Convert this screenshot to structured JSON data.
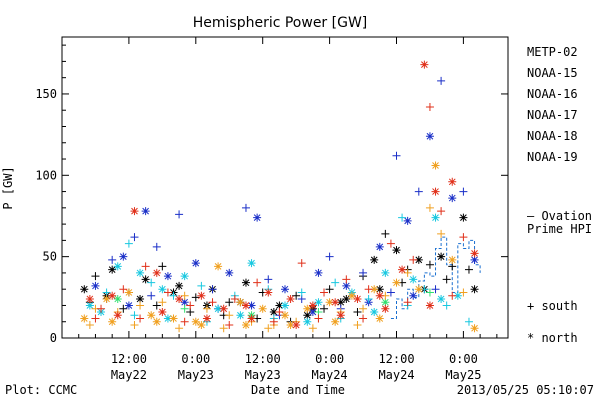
{
  "chart_data": {
    "type": "scatter",
    "title": "Hemispheric Power [GW]",
    "xlabel": "Date and Time",
    "ylabel": "P [GW]",
    "ylim": [
      0,
      185
    ],
    "xlim": [
      0,
      80
    ],
    "x_unit": "hours since May21 00:00 (tick labels shown as clock/date)",
    "y_ticks": [
      0,
      50,
      100,
      150
    ],
    "x_ticks": [
      {
        "x": 12,
        "time": "12:00",
        "date": "May22"
      },
      {
        "x": 24,
        "time": "0:00",
        "date": "May23"
      },
      {
        "x": 36,
        "time": "12:00",
        "date": "May23"
      },
      {
        "x": 48,
        "time": "0:00",
        "date": "May24"
      },
      {
        "x": 60,
        "time": "12:00",
        "date": "May24"
      },
      {
        "x": 72,
        "time": "0:00",
        "date": "May25"
      }
    ],
    "legend": [
      {
        "name": "METP-02",
        "color": "#000000"
      },
      {
        "name": "NOAA-15",
        "color": "#1a2fc8"
      },
      {
        "name": "NOAA-16",
        "color": "#18c8e0"
      },
      {
        "name": "NOAA-17",
        "color": "#30e070"
      },
      {
        "name": "NOAA-18",
        "color": "#f0a020"
      },
      {
        "name": "NOAA-19",
        "color": "#e0301a"
      }
    ],
    "ovation": {
      "label_line1": "— Ovation",
      "label_line2": "Prime HPI",
      "color": "#1a6fd0",
      "points": [
        [
          59,
          12
        ],
        [
          60,
          24
        ],
        [
          61,
          18
        ],
        [
          62,
          30
        ],
        [
          63,
          25
        ],
        [
          64,
          35
        ],
        [
          65,
          40
        ],
        [
          66,
          38
        ],
        [
          67,
          55
        ],
        [
          68,
          62
        ],
        [
          69,
          45
        ],
        [
          70,
          28
        ],
        [
          71,
          58
        ],
        [
          72,
          55
        ],
        [
          73,
          60
        ],
        [
          74,
          45
        ],
        [
          75,
          40
        ]
      ]
    },
    "marker_key": {
      "south": "+ south",
      "north": "* north"
    },
    "series": [
      {
        "name": "METP-02",
        "color": "#000000",
        "points": [
          [
            4,
            30
          ],
          [
            6,
            38
          ],
          [
            9,
            42
          ],
          [
            12,
            28
          ],
          [
            15,
            36
          ],
          [
            18,
            44
          ],
          [
            21,
            32
          ],
          [
            24,
            25
          ],
          [
            27,
            30
          ],
          [
            30,
            22
          ],
          [
            33,
            34
          ],
          [
            36,
            28
          ],
          [
            39,
            20
          ],
          [
            42,
            26
          ],
          [
            45,
            18
          ],
          [
            48,
            30
          ],
          [
            51,
            24
          ],
          [
            54,
            38
          ],
          [
            56,
            48
          ],
          [
            58,
            64
          ],
          [
            60,
            54
          ],
          [
            62,
            42
          ],
          [
            64,
            48
          ],
          [
            66,
            45
          ],
          [
            68,
            50
          ],
          [
            70,
            44
          ],
          [
            72,
            74
          ],
          [
            73,
            42
          ],
          [
            74,
            30
          ],
          [
            5,
            22
          ],
          [
            8,
            26
          ],
          [
            11,
            18
          ],
          [
            14,
            24
          ],
          [
            17,
            20
          ],
          [
            20,
            28
          ],
          [
            23,
            16
          ],
          [
            26,
            20
          ],
          [
            29,
            14
          ],
          [
            32,
            22
          ],
          [
            35,
            12
          ],
          [
            38,
            16
          ],
          [
            41,
            10
          ],
          [
            44,
            14
          ],
          [
            47,
            18
          ],
          [
            50,
            22
          ],
          [
            53,
            16
          ],
          [
            57,
            30
          ],
          [
            61,
            34
          ],
          [
            65,
            30
          ],
          [
            69,
            36
          ]
        ]
      },
      {
        "name": "NOAA-15",
        "color": "#1a2fc8",
        "points": [
          [
            6,
            32
          ],
          [
            9,
            48
          ],
          [
            11,
            50
          ],
          [
            13,
            62
          ],
          [
            15,
            78
          ],
          [
            17,
            56
          ],
          [
            19,
            38
          ],
          [
            21,
            76
          ],
          [
            24,
            46
          ],
          [
            27,
            30
          ],
          [
            30,
            40
          ],
          [
            33,
            80
          ],
          [
            35,
            74
          ],
          [
            37,
            36
          ],
          [
            40,
            30
          ],
          [
            43,
            24
          ],
          [
            46,
            40
          ],
          [
            48,
            50
          ],
          [
            51,
            32
          ],
          [
            54,
            40
          ],
          [
            57,
            56
          ],
          [
            60,
            112
          ],
          [
            62,
            72
          ],
          [
            64,
            90
          ],
          [
            66,
            124
          ],
          [
            68,
            158
          ],
          [
            70,
            86
          ],
          [
            72,
            90
          ],
          [
            74,
            48
          ],
          [
            8,
            24
          ],
          [
            12,
            20
          ],
          [
            16,
            26
          ],
          [
            22,
            22
          ],
          [
            28,
            18
          ],
          [
            34,
            20
          ],
          [
            39,
            14
          ],
          [
            45,
            16
          ],
          [
            50,
            18
          ],
          [
            55,
            22
          ],
          [
            59,
            28
          ],
          [
            63,
            26
          ],
          [
            67,
            30
          ]
        ]
      },
      {
        "name": "NOAA-16",
        "color": "#18c8e0",
        "points": [
          [
            5,
            20
          ],
          [
            8,
            28
          ],
          [
            10,
            44
          ],
          [
            12,
            58
          ],
          [
            14,
            40
          ],
          [
            16,
            34
          ],
          [
            18,
            30
          ],
          [
            20,
            26
          ],
          [
            22,
            38
          ],
          [
            25,
            32
          ],
          [
            28,
            18
          ],
          [
            31,
            26
          ],
          [
            34,
            46
          ],
          [
            37,
            30
          ],
          [
            40,
            20
          ],
          [
            43,
            28
          ],
          [
            46,
            22
          ],
          [
            49,
            34
          ],
          [
            52,
            28
          ],
          [
            55,
            24
          ],
          [
            58,
            40
          ],
          [
            61,
            74
          ],
          [
            63,
            36
          ],
          [
            65,
            30
          ],
          [
            67,
            74
          ],
          [
            69,
            20
          ],
          [
            71,
            26
          ],
          [
            73,
            10
          ],
          [
            7,
            16
          ],
          [
            13,
            14
          ],
          [
            19,
            12
          ],
          [
            26,
            10
          ],
          [
            32,
            14
          ],
          [
            38,
            12
          ],
          [
            44,
            10
          ],
          [
            50,
            12
          ],
          [
            56,
            16
          ],
          [
            62,
            20
          ],
          [
            68,
            24
          ]
        ]
      },
      {
        "name": "NOAA-17",
        "color": "#30e070",
        "points": [
          [
            10,
            24
          ],
          [
            22,
            18
          ],
          [
            34,
            14
          ],
          [
            46,
            16
          ],
          [
            58,
            22
          ],
          [
            66,
            28
          ]
        ]
      },
      {
        "name": "NOAA-18",
        "color": "#f0a020",
        "points": [
          [
            4,
            12
          ],
          [
            6,
            18
          ],
          [
            8,
            24
          ],
          [
            10,
            16
          ],
          [
            12,
            28
          ],
          [
            14,
            20
          ],
          [
            16,
            14
          ],
          [
            18,
            22
          ],
          [
            20,
            12
          ],
          [
            22,
            26
          ],
          [
            24,
            10
          ],
          [
            26,
            18
          ],
          [
            28,
            44
          ],
          [
            30,
            14
          ],
          [
            32,
            22
          ],
          [
            34,
            10
          ],
          [
            36,
            18
          ],
          [
            38,
            8
          ],
          [
            40,
            14
          ],
          [
            42,
            10
          ],
          [
            44,
            18
          ],
          [
            46,
            12
          ],
          [
            48,
            22
          ],
          [
            50,
            16
          ],
          [
            52,
            26
          ],
          [
            54,
            18
          ],
          [
            56,
            30
          ],
          [
            58,
            26
          ],
          [
            60,
            34
          ],
          [
            62,
            40
          ],
          [
            64,
            30
          ],
          [
            66,
            80
          ],
          [
            67,
            106
          ],
          [
            68,
            64
          ],
          [
            70,
            48
          ],
          [
            72,
            28
          ],
          [
            74,
            6
          ],
          [
            5,
            8
          ],
          [
            9,
            10
          ],
          [
            13,
            8
          ],
          [
            17,
            10
          ],
          [
            21,
            6
          ],
          [
            25,
            8
          ],
          [
            29,
            6
          ],
          [
            33,
            8
          ],
          [
            37,
            6
          ],
          [
            41,
            8
          ],
          [
            45,
            6
          ],
          [
            49,
            10
          ],
          [
            53,
            8
          ],
          [
            57,
            12
          ]
        ]
      },
      {
        "name": "NOAA-19",
        "color": "#e0301a",
        "points": [
          [
            5,
            24
          ],
          [
            7,
            18
          ],
          [
            9,
            26
          ],
          [
            11,
            30
          ],
          [
            13,
            78
          ],
          [
            15,
            44
          ],
          [
            17,
            40
          ],
          [
            19,
            28
          ],
          [
            21,
            24
          ],
          [
            23,
            20
          ],
          [
            25,
            26
          ],
          [
            27,
            22
          ],
          [
            29,
            18
          ],
          [
            31,
            24
          ],
          [
            33,
            20
          ],
          [
            35,
            34
          ],
          [
            37,
            28
          ],
          [
            39,
            16
          ],
          [
            41,
            24
          ],
          [
            43,
            46
          ],
          [
            45,
            20
          ],
          [
            47,
            28
          ],
          [
            49,
            22
          ],
          [
            51,
            36
          ],
          [
            53,
            24
          ],
          [
            55,
            30
          ],
          [
            57,
            26
          ],
          [
            59,
            58
          ],
          [
            61,
            42
          ],
          [
            63,
            48
          ],
          [
            65,
            168
          ],
          [
            66,
            142
          ],
          [
            67,
            90
          ],
          [
            68,
            78
          ],
          [
            70,
            96
          ],
          [
            72,
            62
          ],
          [
            74,
            52
          ],
          [
            6,
            12
          ],
          [
            10,
            14
          ],
          [
            14,
            12
          ],
          [
            18,
            16
          ],
          [
            22,
            10
          ],
          [
            26,
            12
          ],
          [
            30,
            8
          ],
          [
            34,
            12
          ],
          [
            38,
            10
          ],
          [
            42,
            8
          ],
          [
            46,
            12
          ],
          [
            50,
            14
          ],
          [
            54,
            12
          ],
          [
            58,
            18
          ],
          [
            62,
            22
          ],
          [
            66,
            20
          ],
          [
            70,
            26
          ]
        ]
      }
    ]
  },
  "footer": {
    "left": "Plot: CCMC",
    "timestamp": "2013/05/25 05:10:07"
  }
}
